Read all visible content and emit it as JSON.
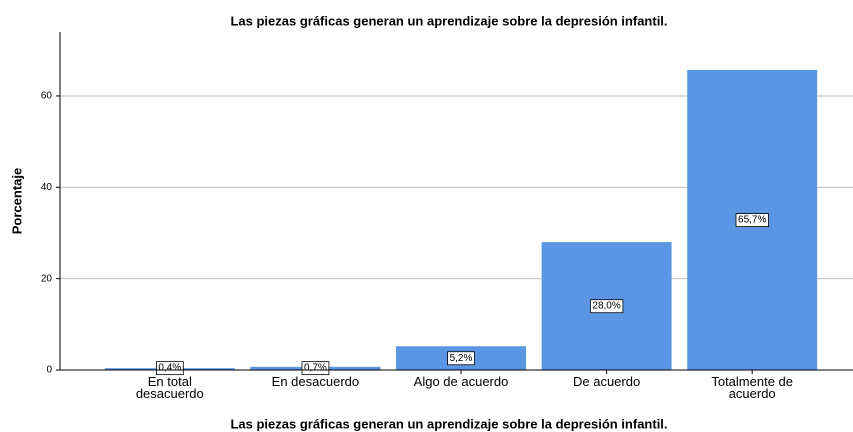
{
  "chart_data": {
    "type": "bar",
    "title": "Las piezas gráficas generan un aprendizaje sobre la depresión infantil.",
    "x_label": "Las piezas gráficas generan un aprendizaje sobre la depresión infantil.",
    "y_label": "Porcentaje",
    "categories": [
      "En total desacuerdo",
      "En desacuerdo",
      "Algo de acuerdo",
      "De acuerdo",
      "Totalmente de acuerdo"
    ],
    "values": [
      0.4,
      0.7,
      5.2,
      28.0,
      65.7
    ],
    "value_labels": [
      "0,4%",
      "0,7%",
      "5,2%",
      "28,0%",
      "65,7%"
    ],
    "color": "#5a96e3",
    "ylim": [
      0,
      74
    ],
    "yticks": [
      0,
      20,
      40,
      60
    ],
    "grid": true
  }
}
